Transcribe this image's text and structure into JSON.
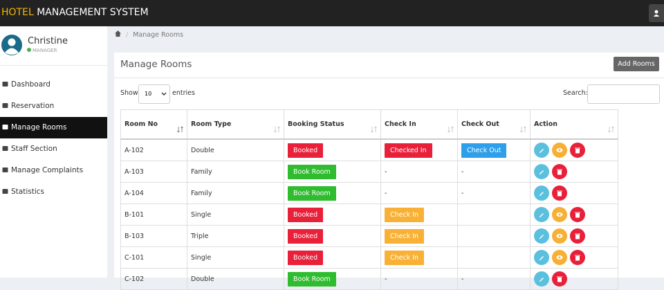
{
  "header": {
    "brand_highlight": "HOTEL",
    "brand_rest": "MANAGEMENT SYSTEM"
  },
  "user": {
    "name": "Christine",
    "role": "MANAGER"
  },
  "nav": [
    "Dashboard",
    "Reservation",
    "Manage Rooms",
    "Staff Section",
    "Manage Complaints",
    "Statistics"
  ],
  "breadcrumb": "Manage Rooms",
  "panel": {
    "title": "Manage Rooms",
    "add_button": "Add Rooms"
  },
  "controls": {
    "show": "Show",
    "entries_value": "10",
    "entries": "entries",
    "search": "Search:"
  },
  "table": {
    "columns": [
      "Room No",
      "Room Type",
      "Booking Status",
      "Check In",
      "Check Out",
      "Action"
    ],
    "rows": [
      [
        "A-102",
        "Double",
        {
          "text": "Booked",
          "color": "#e8203a"
        },
        {
          "text": "Checked In",
          "color": "#e8203a"
        },
        {
          "text": "Check Out",
          "color": "#2e9fea"
        }
      ],
      [
        "A-103",
        "Family",
        {
          "text": "Book Room",
          "color": "#2fbd2f"
        },
        "-",
        "-"
      ],
      [
        "A-104",
        "Family",
        {
          "text": "Book Room",
          "color": "#2fbd2f"
        },
        "-",
        "-"
      ],
      [
        "B-101",
        "Single",
        {
          "text": "Booked",
          "color": "#e8203a"
        },
        {
          "text": "Check In",
          "color": "#f8b136"
        },
        null
      ],
      [
        "B-103",
        "Triple",
        {
          "text": "Booked",
          "color": "#e8203a"
        },
        {
          "text": "Check In",
          "color": "#f8b136"
        },
        null
      ],
      [
        "C-101",
        "Single",
        {
          "text": "Booked",
          "color": "#e8203a"
        },
        {
          "text": "Check In",
          "color": "#f8b136"
        },
        null
      ],
      [
        "C-102",
        "Double",
        {
          "text": "Book Room",
          "color": "#2fbd2f"
        },
        "-",
        "-"
      ]
    ]
  }
}
